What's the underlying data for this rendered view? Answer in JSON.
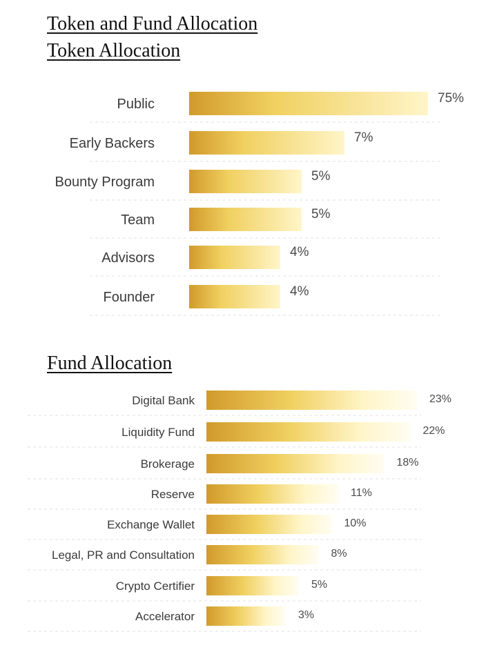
{
  "heading": "Token and Fund Allocation",
  "colors": {
    "bar_dark": "#d19a2b",
    "bar_mid": "#f0d060",
    "bar_light": "#fff5c8",
    "bar_fade": "#fffdf2",
    "text": "#3a3a3a"
  },
  "chart_data": [
    {
      "type": "bar",
      "orientation": "horizontal",
      "title": "Token Allocation",
      "categories": [
        "Public",
        "Early Backers",
        "Bounty Program",
        "Team",
        "Advisors",
        "Founder"
      ],
      "values": [
        75,
        7,
        5,
        5,
        4,
        4
      ],
      "value_labels": [
        "75%",
        "7%",
        "5%",
        "5%",
        "4%",
        "4%"
      ],
      "xlabel": "",
      "ylabel": "",
      "legend": "none"
    },
    {
      "type": "bar",
      "orientation": "horizontal",
      "title": "Fund Allocation",
      "categories": [
        "Digital Bank",
        "Liquidity Fund",
        "Brokerage",
        "Reserve",
        "Exchange Wallet",
        "Legal, PR and Consultation",
        "Crypto Certifier",
        "Accelerator"
      ],
      "values": [
        23,
        22,
        18,
        11,
        10,
        8,
        5,
        3
      ],
      "value_labels": [
        "23%",
        "22%",
        "18%",
        "11%",
        "10%",
        "8%",
        "5%",
        "3%"
      ],
      "xlabel": "",
      "ylabel": "",
      "legend": "none"
    }
  ]
}
